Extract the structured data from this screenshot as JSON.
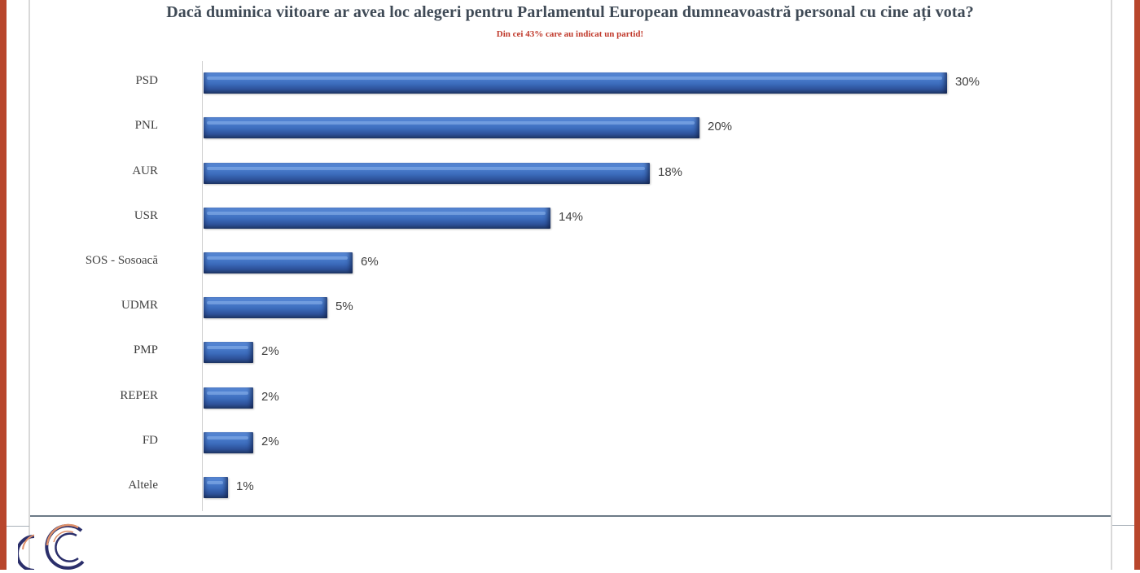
{
  "title": "Dacă duminica viitoare ar avea loc alegeri pentru Parlamentul European dumneavoastră personal cu cine ați vota?",
  "subtitle": "Din cei 43% care au indicat un partid!",
  "colors": {
    "bar": "#3b6bbb",
    "title": "#3f4a56",
    "subtitle": "#c0392b",
    "frame": "#b8462c",
    "footer_line": "#6c7a86"
  },
  "chart_data": {
    "type": "bar",
    "orientation": "horizontal",
    "title": "Dacă duminica viitoare ar avea loc alegeri pentru Parlamentul European dumneavoastră personal cu cine ați vota?",
    "subtitle": "Din cei 43% care au indicat un partid!",
    "categories": [
      "PSD",
      "PNL",
      "AUR",
      "USR",
      "SOS - Sosoacă",
      "UDMR",
      "PMP",
      "REPER",
      "FD",
      "Altele"
    ],
    "values": [
      30,
      20,
      18,
      14,
      6,
      5,
      2,
      2,
      2,
      1
    ],
    "value_labels": [
      "30%",
      "20%",
      "18%",
      "14%",
      "6%",
      "5%",
      "2%",
      "2%",
      "2%",
      "1%"
    ],
    "unit": "%",
    "xlabel": "",
    "ylabel": "",
    "grid": false,
    "legend": "none",
    "xlim": [
      0,
      30
    ]
  },
  "rows": [
    {
      "label": "PSD",
      "value": 30,
      "text": "30%"
    },
    {
      "label": "PNL",
      "value": 20,
      "text": "20%"
    },
    {
      "label": "AUR",
      "value": 18,
      "text": "18%"
    },
    {
      "label": "USR",
      "value": 14,
      "text": "14%"
    },
    {
      "label": "SOS - Sosoacă",
      "value": 6,
      "text": "6%"
    },
    {
      "label": "UDMR",
      "value": 5,
      "text": "5%"
    },
    {
      "label": "PMP",
      "value": 2,
      "text": "2%"
    },
    {
      "label": "REPER",
      "value": 2,
      "text": "2%"
    },
    {
      "label": "FD",
      "value": 2,
      "text": "2%"
    },
    {
      "label": "Altele",
      "value": 1,
      "text": "1%"
    }
  ],
  "logo": {
    "icon": "crescent-logo-icon"
  }
}
